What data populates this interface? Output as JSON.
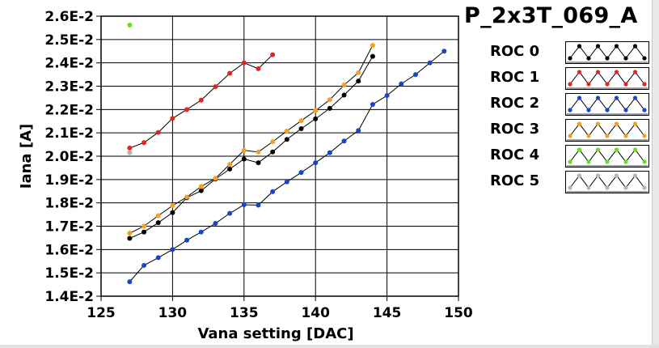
{
  "chart_data": {
    "type": "line",
    "title": "P_2x3T_069_A",
    "xlabel": "Vana setting [DAC]",
    "ylabel": "Iana [A]",
    "xlim": [
      125,
      150
    ],
    "ylim": [
      0.014,
      0.026
    ],
    "xticks": [
      125,
      130,
      135,
      140,
      145,
      150
    ],
    "yticks": [
      "1.4E-2",
      "1.5E-2",
      "1.6E-2",
      "1.7E-2",
      "1.8E-2",
      "1.9E-2",
      "2.0E-2",
      "2.1E-2",
      "2.2E-2",
      "2.3E-2",
      "2.4E-2",
      "2.5E-2",
      "2.6E-2"
    ],
    "grid": true,
    "legend_position": "right",
    "series": [
      {
        "name": "ROC 0",
        "color": "#000000",
        "x": [
          127,
          128,
          129,
          130,
          131,
          132,
          133,
          134,
          135,
          136,
          137,
          138,
          139,
          140,
          141,
          142,
          143,
          144
        ],
        "y": [
          0.01648,
          0.01675,
          0.01715,
          0.01758,
          0.01822,
          0.01852,
          0.01902,
          0.01945,
          0.01988,
          0.01972,
          0.02018,
          0.02072,
          0.02118,
          0.0216,
          0.02205,
          0.02262,
          0.02322,
          0.02428
        ]
      },
      {
        "name": "ROC 1",
        "color": "#e8231c",
        "x": [
          127,
          128,
          129,
          130,
          131,
          132,
          133,
          134,
          135,
          136,
          137
        ],
        "y": [
          0.02035,
          0.02058,
          0.02102,
          0.02162,
          0.022,
          0.0224,
          0.02298,
          0.02355,
          0.024,
          0.02375,
          0.02435
        ]
      },
      {
        "name": "ROC 2",
        "color": "#1446c8",
        "x": [
          127,
          128,
          129,
          130,
          131,
          132,
          133,
          134,
          135,
          136,
          137,
          138,
          139,
          140,
          141,
          142,
          143,
          144,
          145,
          146,
          147,
          148,
          149
        ],
        "y": [
          0.01462,
          0.01532,
          0.01565,
          0.016,
          0.0164,
          0.01675,
          0.01712,
          0.01755,
          0.01792,
          0.0179,
          0.01848,
          0.0189,
          0.0193,
          0.01972,
          0.02015,
          0.02065,
          0.0211,
          0.02222,
          0.0226,
          0.0231,
          0.0235,
          0.024,
          0.0245
        ]
      },
      {
        "name": "ROC 3",
        "color": "#f5a020",
        "x": [
          127,
          128,
          129,
          130,
          131,
          132,
          133,
          134,
          135,
          136,
          137,
          138,
          139,
          140,
          141,
          142,
          143,
          144
        ],
        "y": [
          0.0167,
          0.017,
          0.01745,
          0.01788,
          0.01825,
          0.0187,
          0.01905,
          0.01965,
          0.02025,
          0.02018,
          0.02062,
          0.02108,
          0.02152,
          0.02195,
          0.02242,
          0.02305,
          0.02358,
          0.02475
        ]
      },
      {
        "name": "ROC 4",
        "color": "#66e01e",
        "x": [
          127
        ],
        "y": [
          0.02562
        ]
      },
      {
        "name": "ROC 5",
        "color": "#b4b4b4",
        "x": [
          127
        ],
        "y": [
          0.02015
        ]
      }
    ]
  }
}
